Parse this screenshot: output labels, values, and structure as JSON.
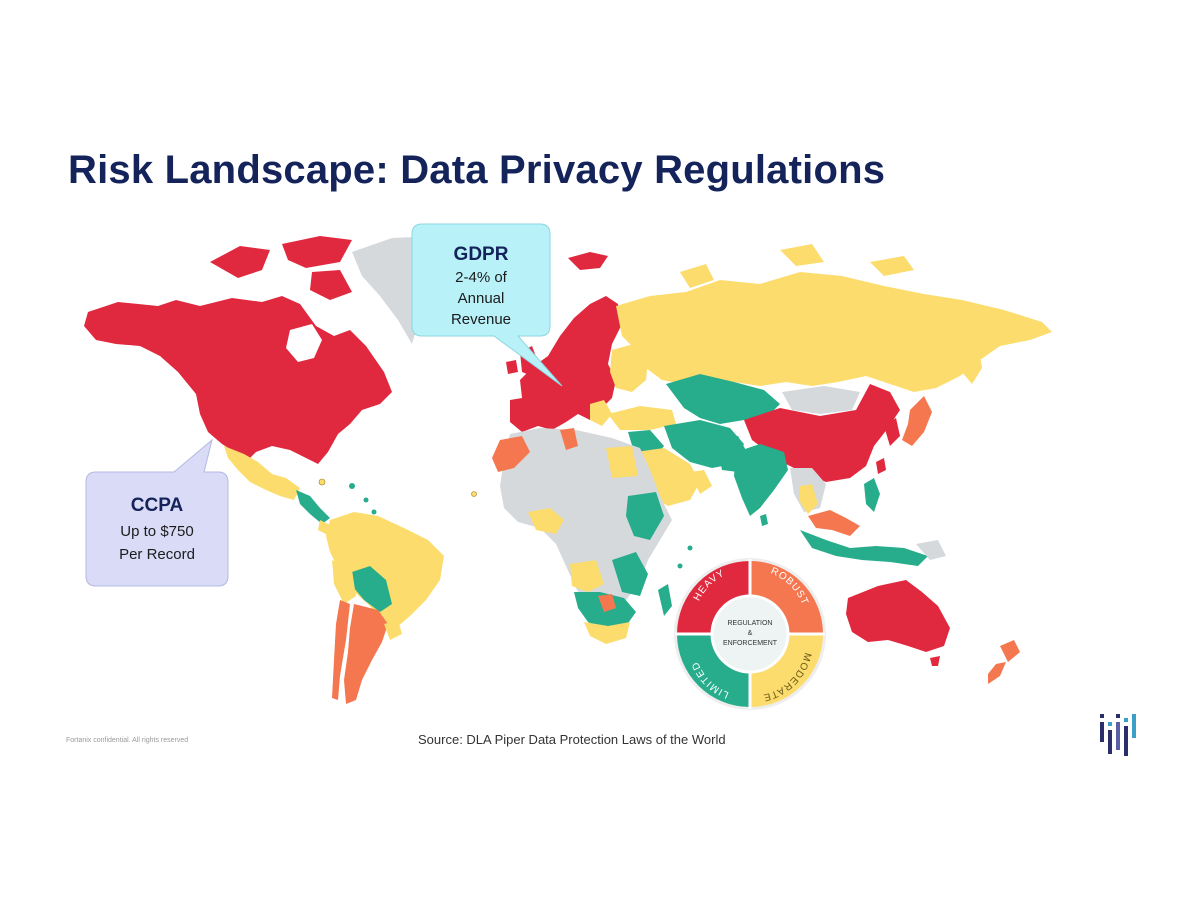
{
  "title": "Risk Landscape: Data Privacy Regulations",
  "callouts": {
    "gdpr": {
      "heading": "GDPR",
      "lines": [
        "2-4% of",
        "Annual",
        "Revenue"
      ]
    },
    "ccpa": {
      "heading": "CCPA",
      "lines": [
        "Up to $750",
        "Per Record"
      ]
    }
  },
  "legend": {
    "center_lines": [
      "REGULATION",
      "&",
      "ENFORCEMENT"
    ],
    "segments": [
      {
        "label": "HEAVY",
        "color": "#e0283f"
      },
      {
        "label": "ROBUST",
        "color": "#f4774f"
      },
      {
        "label": "MODERATE",
        "color": "#fbdc6c"
      },
      {
        "label": "LIMITED",
        "color": "#27ad8c"
      }
    ]
  },
  "colors": {
    "heavy": "#e0283f",
    "robust": "#f4774f",
    "moderate": "#fbdc6c",
    "limited": "#27ad8c",
    "no_data": "#d5d9dc",
    "gdpr_callout": "#b8f1f8",
    "ccpa_callout": "#d9dbf7",
    "title": "#14235a"
  },
  "footer": {
    "source": "Source: DLA Piper Data Protection Laws of the World",
    "confidential": "Fortanix confidential. All rights reserved"
  },
  "logo_icon": "fortanix-logo-icon"
}
